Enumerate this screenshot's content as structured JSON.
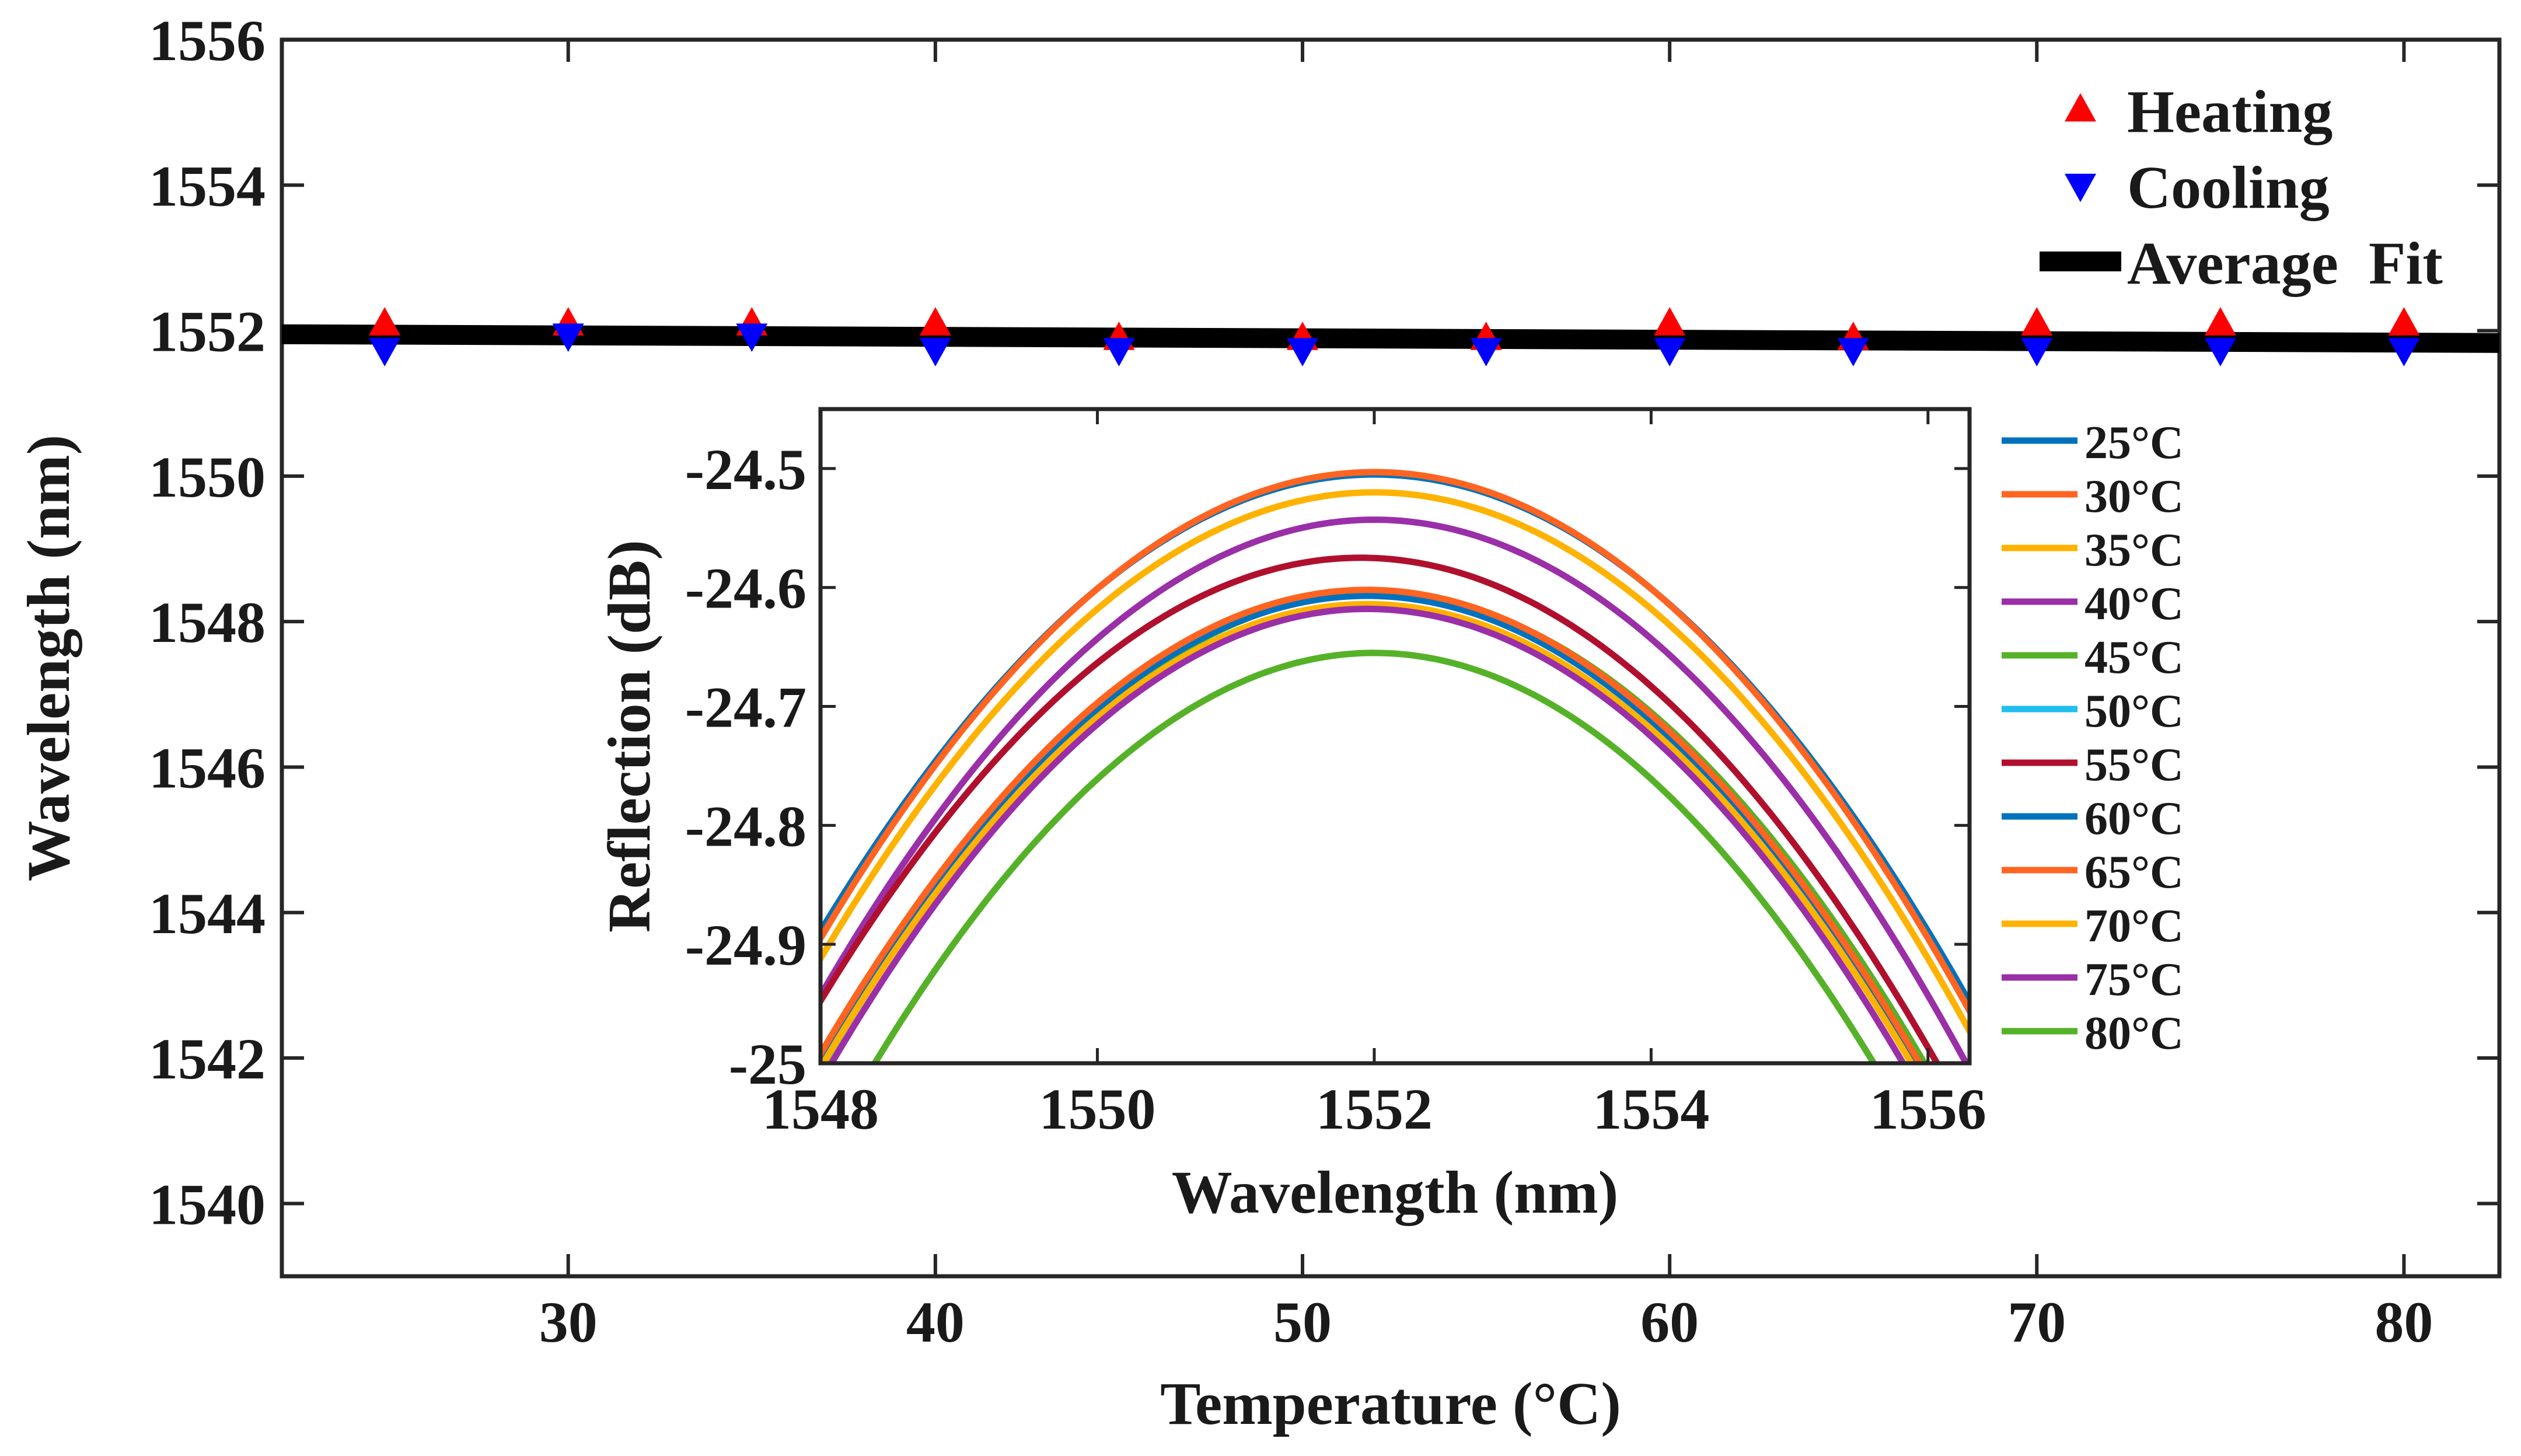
{
  "chart_data": [
    {
      "type": "scatter",
      "xlabel": "Temperature (°C)",
      "ylabel": "Wavelength (nm)",
      "xlim": [
        22.2,
        82.6
      ],
      "ylim": [
        1539,
        1556
      ],
      "x_ticks": [
        "30",
        "40",
        "50",
        "60",
        "70",
        "80"
      ],
      "y_ticks": [
        "1540",
        "1542",
        "1544",
        "1546",
        "1548",
        "1550",
        "1552",
        "1554",
        "1556"
      ],
      "legend_position": "top-right",
      "legend": [
        "Heating",
        "Cooling",
        "Average  Fit"
      ],
      "series": [
        {
          "name": "Heating",
          "marker": "triangle-up",
          "color": "#ff0000",
          "x": [
            25,
            30,
            35,
            40,
            45,
            50,
            55,
            60,
            65,
            70,
            75,
            80
          ],
          "y": [
            1552.0,
            1552.0,
            1552.0,
            1552.0,
            1551.8,
            1551.8,
            1551.8,
            1552.0,
            1551.8,
            1552.0,
            1552.0,
            1552.0
          ]
        },
        {
          "name": "Cooling",
          "marker": "triangle-down",
          "color": "#0000ff",
          "x": [
            25,
            30,
            35,
            40,
            45,
            50,
            55,
            60,
            65,
            70,
            75,
            80
          ],
          "y": [
            1551.8,
            1552.0,
            1552.0,
            1551.8,
            1551.8,
            1551.8,
            1551.8,
            1551.8,
            1551.8,
            1551.8,
            1551.8,
            1551.8
          ]
        },
        {
          "name": "Average  Fit",
          "marker": "line",
          "color": "#000000",
          "x": [
            22.2,
            82.6
          ],
          "y": [
            1551.95,
            1551.83
          ]
        }
      ]
    },
    {
      "type": "line",
      "xlabel": "Wavelength (nm)",
      "ylabel": "Reflection (dB)",
      "xlim": [
        1548,
        1556.3
      ],
      "ylim": [
        -25,
        -24.45
      ],
      "x_ticks": [
        "1548",
        "1550",
        "1552",
        "1554",
        "1556"
      ],
      "y_ticks": [
        "-24.5",
        "-24.6",
        "-24.7",
        "-24.8",
        "-24.9",
        "-25"
      ],
      "legend_position": "right",
      "legend": [
        "25°C",
        "30°C",
        "35°C",
        "40°C",
        "45°C",
        "50°C",
        "55°C",
        "60°C",
        "65°C",
        "70°C",
        "75°C",
        "80°C"
      ],
      "curve_model": "peak - a * (wavelength - center)^2",
      "series": [
        {
          "name": "25°C",
          "color": "#0072bd",
          "peak": -24.505,
          "center": 1552.0,
          "a": 0.024
        },
        {
          "name": "30°C",
          "color": "#ff6420",
          "peak": -24.503,
          "center": 1552.0,
          "a": 0.0245
        },
        {
          "name": "35°C",
          "color": "#ffb200",
          "peak": -24.52,
          "center": 1552.0,
          "a": 0.0245
        },
        {
          "name": "40°C",
          "color": "#9a2fa8",
          "peak": -24.543,
          "center": 1552.0,
          "a": 0.025
        },
        {
          "name": "45°C",
          "color": "#55b228",
          "peak": -24.605,
          "center": 1552.0,
          "a": 0.025
        },
        {
          "name": "50°C",
          "color": "#20bff0",
          "peak": -24.605,
          "center": 1551.95,
          "a": 0.025
        },
        {
          "name": "55°C",
          "color": "#b0102e",
          "peak": -24.575,
          "center": 1551.9,
          "a": 0.0245
        },
        {
          "name": "60°C",
          "color": "#0072bd",
          "peak": -24.607,
          "center": 1551.95,
          "a": 0.025
        },
        {
          "name": "65°C",
          "color": "#ff6420",
          "peak": -24.602,
          "center": 1551.95,
          "a": 0.025
        },
        {
          "name": "70°C",
          "color": "#ffb200",
          "peak": -24.614,
          "center": 1551.95,
          "a": 0.025
        },
        {
          "name": "75°C",
          "color": "#9a2fa8",
          "peak": -24.618,
          "center": 1551.95,
          "a": 0.0255
        },
        {
          "name": "80°C",
          "color": "#55b228",
          "peak": -24.655,
          "center": 1552.0,
          "a": 0.0265
        }
      ]
    }
  ]
}
